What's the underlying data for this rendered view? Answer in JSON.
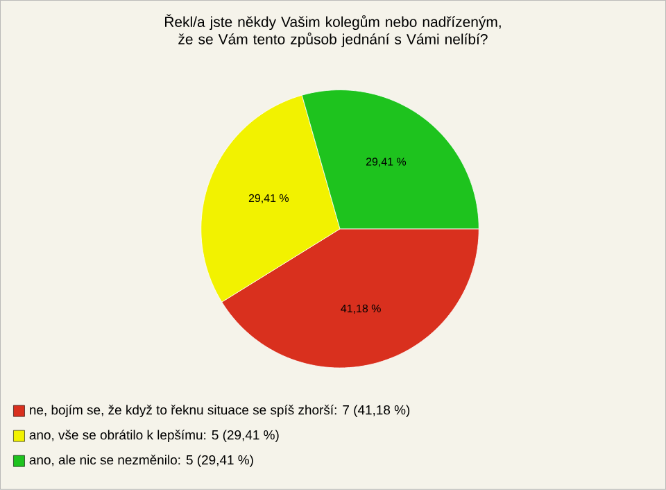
{
  "chart_data": {
    "type": "pie",
    "title": "Řekl/a jste někdy Vašim kolegům nebo nadřízeným, že se Vám tento způsob jednání s Vámi nelíbí?",
    "categories": [
      "ne, bojím se, že když to řeknu situace se spíš zhorší: 7 (41,18 %)",
      "ano, vše se obrátilo k lepšímu: 5 (29,41 %)",
      "ano, ale nic se nezměnilo: 5 (29,41 %)"
    ],
    "values": [
      41.18,
      29.41,
      29.41
    ],
    "value_labels": [
      "41,18 %",
      "29,41 %",
      "29,41 %"
    ],
    "colors": [
      "#d9301e",
      "#f2f200",
      "#1ec31e"
    ],
    "legend": "bottom left"
  }
}
